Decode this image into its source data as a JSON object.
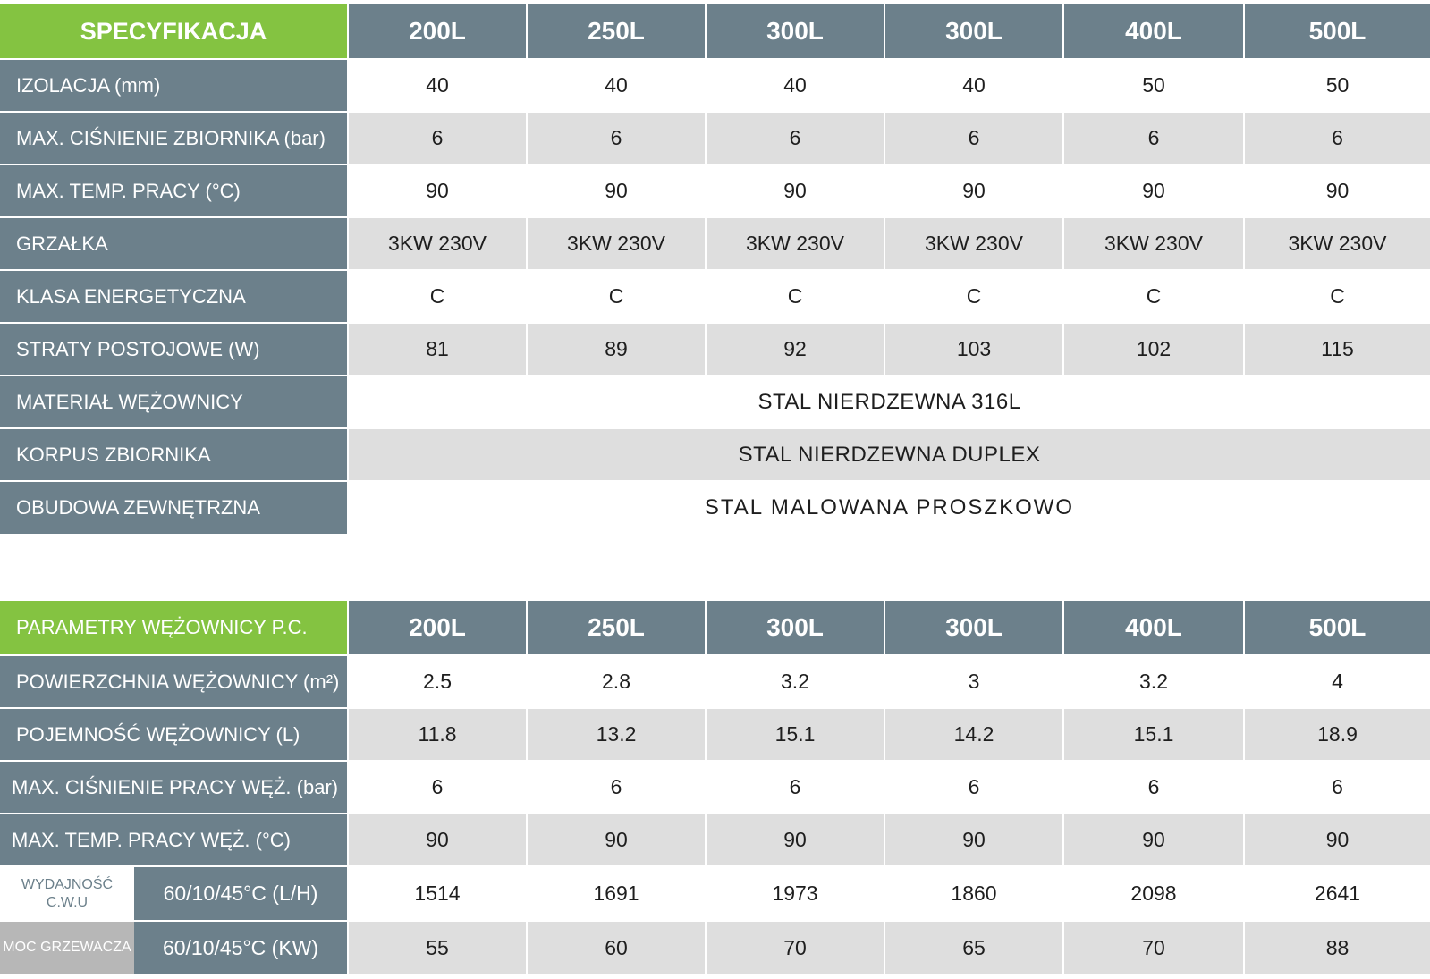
{
  "spec": {
    "title": "SPECYFIKACJA",
    "columns": [
      "200L",
      "250L",
      "300L",
      "300L",
      "400L",
      "500L"
    ],
    "rows": [
      {
        "label": "IZOLACJA  (mm)",
        "values": [
          "40",
          "40",
          "40",
          "40",
          "50",
          "50"
        ]
      },
      {
        "label": "MAX. CIŚNIENIE ZBIORNIKA (bar)",
        "values": [
          "6",
          "6",
          "6",
          "6",
          "6",
          "6"
        ]
      },
      {
        "label": "MAX. TEMP. PRACY (°C)",
        "values": [
          "90",
          "90",
          "90",
          "90",
          "90",
          "90"
        ]
      },
      {
        "label": "GRZAŁKA",
        "values": [
          "3KW 230V",
          "3KW 230V",
          "3KW 230V",
          "3KW 230V",
          "3KW 230V",
          "3KW 230V"
        ]
      },
      {
        "label": "KLASA ENERGETYCZNA",
        "values": [
          "C",
          "C",
          "C",
          "C",
          "C",
          "C"
        ]
      },
      {
        "label": "STRATY POSTOJOWE (W)",
        "values": [
          "81",
          "89",
          "92",
          "103",
          "102",
          "115"
        ]
      },
      {
        "label": "MATERIAŁ WĘŻOWNICY",
        "span": "STAL NIERDZEWNA 316L"
      },
      {
        "label": "KORPUS ZBIORNIKA",
        "span": "STAL NIERDZEWNA DUPLEX"
      },
      {
        "label": "OBUDOWA ZEWNĘTRZNA",
        "span": "STAL MALOWANA PROSZKOWO"
      }
    ]
  },
  "coil": {
    "title": "PARAMETRY WĘŻOWNICY P.C.",
    "columns": [
      "200L",
      "250L",
      "300L",
      "300L",
      "400L",
      "500L"
    ],
    "rows": [
      {
        "label": "POWIERZCHNIA WĘŻOWNICY (m²)",
        "values": [
          "2.5",
          "2.8",
          "3.2",
          "3",
          "3.2",
          "4"
        ]
      },
      {
        "label": "POJEMNOŚĆ WĘŻOWNICY (L)",
        "values": [
          "11.8",
          "13.2",
          "15.1",
          "14.2",
          "15.1",
          "18.9"
        ]
      },
      {
        "label": "MAX. CIŚNIENIE PRACY WĘŻ. (bar)",
        "values": [
          "6",
          "6",
          "6",
          "6",
          "6",
          "6"
        ]
      },
      {
        "label": "MAX. TEMP. PRACY WĘŻ. (°C)",
        "values": [
          "90",
          "90",
          "90",
          "90",
          "90",
          "90"
        ]
      },
      {
        "sublabel": "WYDAJNOŚĆ C.W.U",
        "label": "60/10/45°C (L/H)",
        "values": [
          "1514",
          "1691",
          "1973",
          "1860",
          "2098",
          "2641"
        ]
      },
      {
        "sublabel": "MOC GRZEWACZA",
        "label": "60/10/45°C (KW)",
        "values": [
          "55",
          "60",
          "70",
          "65",
          "70",
          "88"
        ]
      }
    ]
  }
}
